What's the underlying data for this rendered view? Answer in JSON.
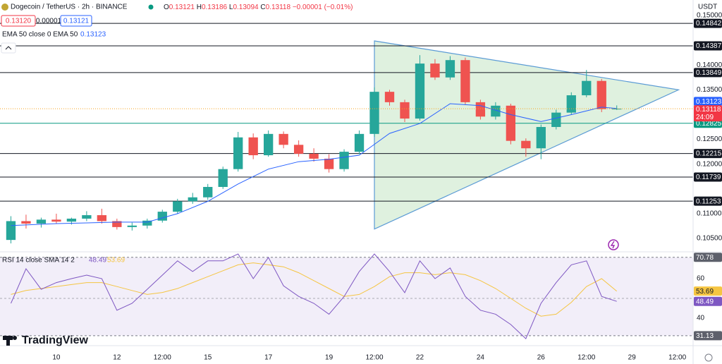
{
  "header": {
    "symbol": "Dogecoin / TetherUS · 2h · BINANCE",
    "ohlc": [
      {
        "key": "O",
        "value": "0.13121"
      },
      {
        "key": "H",
        "value": "0.13186"
      },
      {
        "key": "L",
        "value": "0.13094"
      },
      {
        "key": "C",
        "value": "0.13118"
      }
    ],
    "change": "−0.00001 (−0.01%)",
    "sell": "0.13120",
    "spread": "0.00001",
    "buy": "0.13121",
    "currency": "USDT",
    "logo": "TradingView"
  },
  "chart_data": [
    {
      "type": "candlestick",
      "x": [
        8.5,
        9,
        9.5,
        10,
        10.5,
        11,
        11.5,
        12,
        12.5,
        13,
        13.5,
        14,
        14.5,
        15,
        15.5,
        16,
        16.5,
        17,
        17.5,
        18,
        18.5,
        19,
        19.5,
        20,
        20.5,
        21,
        21.5,
        22,
        22.5,
        23,
        23.5,
        24,
        24.5,
        25,
        25.5,
        26,
        26.5,
        27,
        27.5,
        28,
        28.5
      ],
      "open": [
        0.1047,
        0.1085,
        0.108,
        0.1088,
        0.1084,
        0.109,
        0.1097,
        0.1085,
        0.1073,
        0.1076,
        0.1086,
        0.1104,
        0.1125,
        0.1133,
        0.1154,
        0.119,
        0.1254,
        0.1218,
        0.1261,
        0.1239,
        0.1221,
        0.1211,
        0.119,
        0.1225,
        0.1261,
        0.1346,
        0.1325,
        0.1292,
        0.1403,
        0.1375,
        0.141,
        0.1325,
        0.1296,
        0.1318,
        0.1247,
        0.1232,
        0.1275,
        0.1304,
        0.1339,
        0.1368,
        0.1311
      ],
      "high": [
        0.1095,
        0.1098,
        0.1092,
        0.11,
        0.1092,
        0.1105,
        0.111,
        0.109,
        0.1082,
        0.109,
        0.1108,
        0.113,
        0.1142,
        0.116,
        0.1195,
        0.1265,
        0.1262,
        0.1268,
        0.1266,
        0.1248,
        0.1232,
        0.122,
        0.123,
        0.1268,
        0.1355,
        0.135,
        0.133,
        0.142,
        0.1412,
        0.1418,
        0.1415,
        0.133,
        0.1325,
        0.1322,
        0.1252,
        0.128,
        0.131,
        0.1345,
        0.139,
        0.1372,
        0.13186
      ],
      "low": [
        0.104,
        0.107,
        0.1072,
        0.108,
        0.1078,
        0.1085,
        0.108,
        0.1068,
        0.1066,
        0.107,
        0.1082,
        0.11,
        0.112,
        0.1128,
        0.115,
        0.1185,
        0.121,
        0.1215,
        0.1232,
        0.1215,
        0.1205,
        0.1183,
        0.1185,
        0.122,
        0.1255,
        0.1318,
        0.1285,
        0.1288,
        0.137,
        0.137,
        0.132,
        0.129,
        0.129,
        0.124,
        0.1215,
        0.121,
        0.127,
        0.13,
        0.1335,
        0.1305,
        0.13094
      ],
      "close": [
        0.1085,
        0.108,
        0.1088,
        0.1084,
        0.109,
        0.1097,
        0.1085,
        0.1073,
        0.1076,
        0.1086,
        0.1104,
        0.1125,
        0.1133,
        0.1154,
        0.119,
        0.1254,
        0.1218,
        0.1261,
        0.1239,
        0.1221,
        0.1211,
        0.119,
        0.1225,
        0.1261,
        0.1346,
        0.1325,
        0.1292,
        0.1403,
        0.1375,
        0.141,
        0.1325,
        0.1296,
        0.1318,
        0.1247,
        0.1232,
        0.1275,
        0.1304,
        0.1339,
        0.1368,
        0.1311,
        0.13118
      ],
      "up_color": "#26a69a",
      "down_color": "#ef5350",
      "series": [
        {
          "name": "EMA 50 close 0 EMA 50",
          "color": "#2962ff",
          "x": [
            8.5,
            10,
            12,
            13,
            14,
            15,
            16,
            17,
            18,
            19,
            20,
            20.5,
            21,
            22,
            23,
            24,
            25,
            26,
            27,
            28,
            28.5
          ],
          "values": [
            0.1076,
            0.108,
            0.1083,
            0.1083,
            0.11,
            0.1125,
            0.116,
            0.119,
            0.1205,
            0.121,
            0.1218,
            0.124,
            0.1262,
            0.1282,
            0.1322,
            0.1318,
            0.13,
            0.1286,
            0.13,
            0.1315,
            0.13123
          ]
        }
      ],
      "countdown": "24:09",
      "levels": [
        0.14842,
        0.14387,
        0.13849,
        0.12825,
        0.12215,
        0.11739,
        0.11253
      ],
      "level_colors": [
        "#131722",
        "#131722",
        "#131722",
        "#089981",
        "#131722",
        "#131722",
        "#131722"
      ],
      "triangle": {
        "x": [
          20.5,
          20.5,
          30.54
        ],
        "y": [
          0.14487,
          0.1069,
          0.135
        ],
        "color": "#5b9bd5",
        "fill": "rgba(76,175,80,0.18)"
      },
      "xlim": [
        8.14,
        31.02
      ],
      "ylim": [
        0.1023,
        0.15313
      ],
      "xticks": [
        10,
        12,
        {
          "value": 13.5,
          "label": "12:00"
        },
        15,
        17,
        19,
        {
          "value": 20.5,
          "label": "12:00"
        },
        22,
        24,
        26,
        {
          "value": 27.5,
          "label": "12:00"
        },
        29,
        {
          "value": 30.5,
          "label": "12:00"
        }
      ],
      "yticks": [
        {
          "value": 0.15,
          "label": "0.15000"
        },
        {
          "value": 0.14,
          "label": "0.14000"
        },
        {
          "value": 0.135,
          "label": "0.13500"
        },
        {
          "value": 0.125,
          "label": "0.12500"
        },
        {
          "value": 0.12,
          "label": "0.12000"
        },
        {
          "value": 0.11,
          "label": "0.11000"
        },
        {
          "value": 0.105,
          "label": "0.10500"
        }
      ]
    },
    {
      "type": "line",
      "title": "RSI 14 close SMA 14 2",
      "x": [
        8.5,
        9,
        9.5,
        10,
        10.5,
        11,
        11.5,
        12,
        12.5,
        13,
        13.5,
        14,
        14.5,
        15,
        15.5,
        16,
        16.5,
        17,
        17.5,
        18,
        18.5,
        19,
        19.5,
        20,
        20.5,
        21,
        21.5,
        22,
        22.5,
        23,
        23.5,
        24,
        24.5,
        25,
        25.5,
        26,
        26.5,
        27,
        27.5,
        28,
        28.5
      ],
      "series": [
        {
          "name": "RSI",
          "color": "#7e57c2",
          "values": [
            47.5,
            65,
            54.6,
            58,
            60,
            61.8,
            60,
            44,
            47.5,
            54.6,
            61.8,
            69,
            63.6,
            69,
            69,
            72.5,
            60,
            70.7,
            56.4,
            51,
            47.5,
            42,
            51,
            63.6,
            72.5,
            63.6,
            52.9,
            69,
            60,
            65.4,
            51,
            44,
            42,
            36.8,
            29.6,
            47.5,
            58,
            67,
            69,
            51,
            48.49
          ]
        },
        {
          "name": "SMA",
          "color": "#f5c542",
          "values": [
            52,
            54,
            55,
            56,
            57,
            58,
            58,
            56,
            54,
            52,
            53,
            55,
            58,
            61,
            64,
            67,
            68,
            67,
            66,
            63,
            59,
            55,
            51,
            52,
            56,
            61,
            63,
            63,
            62,
            63,
            62,
            59,
            55,
            50,
            45,
            41,
            42,
            48,
            56,
            60,
            53.69
          ]
        }
      ],
      "bands": [
        70.78,
        31.13
      ],
      "band_fill": "rgba(126,87,194,0.1)",
      "midline": 50,
      "xlim": [
        8.14,
        31.02
      ],
      "ylim": [
        26.07,
        73.57
      ],
      "yticks": [
        60,
        40
      ]
    }
  ]
}
